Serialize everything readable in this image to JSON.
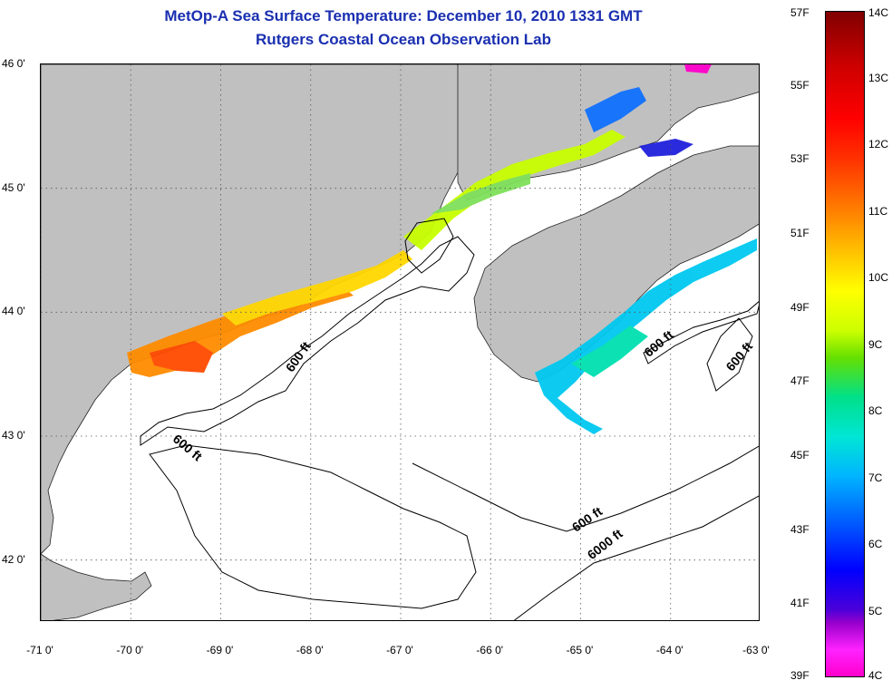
{
  "title": {
    "line1": "MetOp-A Sea Surface Temperature:  December 10, 2010 1331 GMT",
    "line2": "Rutgers Coastal Ocean Observation Lab"
  },
  "map": {
    "lon_range": [
      -71,
      -63
    ],
    "lat_range": [
      41.5,
      46
    ],
    "lat_ticks": [
      {
        "value": 46,
        "label": "46 0'"
      },
      {
        "value": 45,
        "label": "45 0'"
      },
      {
        "value": 44,
        "label": "44 0'"
      },
      {
        "value": 43,
        "label": "43 0'"
      },
      {
        "value": 42,
        "label": "42 0'"
      }
    ],
    "lon_ticks": [
      {
        "value": -71,
        "label": "-71 0'"
      },
      {
        "value": -70,
        "label": "-70 0'"
      },
      {
        "value": -69,
        "label": "-69 0'"
      },
      {
        "value": -68,
        "label": "-68 0'"
      },
      {
        "value": -67,
        "label": "-67 0'"
      },
      {
        "value": -66,
        "label": "-66 0'"
      },
      {
        "value": -65,
        "label": "-65 0'"
      },
      {
        "value": -64,
        "label": "-64 0'"
      },
      {
        "value": -63,
        "label": "-63 0'"
      }
    ],
    "land_color": "#c0c0c0",
    "grid": "dotted",
    "contours": [
      {
        "label": "600 ft",
        "lon": -68.1,
        "lat": 43.62
      },
      {
        "label": "600 ft",
        "lon": -69.4,
        "lat": 42.88
      },
      {
        "label": "600 ft",
        "lon": -64.1,
        "lat": 43.72
      },
      {
        "label": "600 ft",
        "lon": -63.2,
        "lat": 43.62
      },
      {
        "label": "600 ft",
        "lon": -64.9,
        "lat": 42.3
      },
      {
        "label": "6000 ft",
        "lon": -64.7,
        "lat": 42.1
      }
    ]
  },
  "colorbar": {
    "fahrenheit": [
      "57F",
      "55F",
      "53F",
      "51F",
      "49F",
      "47F",
      "45F",
      "43F",
      "41F",
      "39F"
    ],
    "celsius": [
      "14C",
      "13C",
      "12C",
      "11C",
      "10C",
      "9C",
      "8C",
      "7C",
      "6C",
      "5C",
      "4C"
    ],
    "colors": [
      "#800000",
      "#ff0000",
      "#ff8000",
      "#ffff00",
      "#00e08a",
      "#00b3ff",
      "#0000ff",
      "#9900cc",
      "#ff00cc"
    ]
  }
}
